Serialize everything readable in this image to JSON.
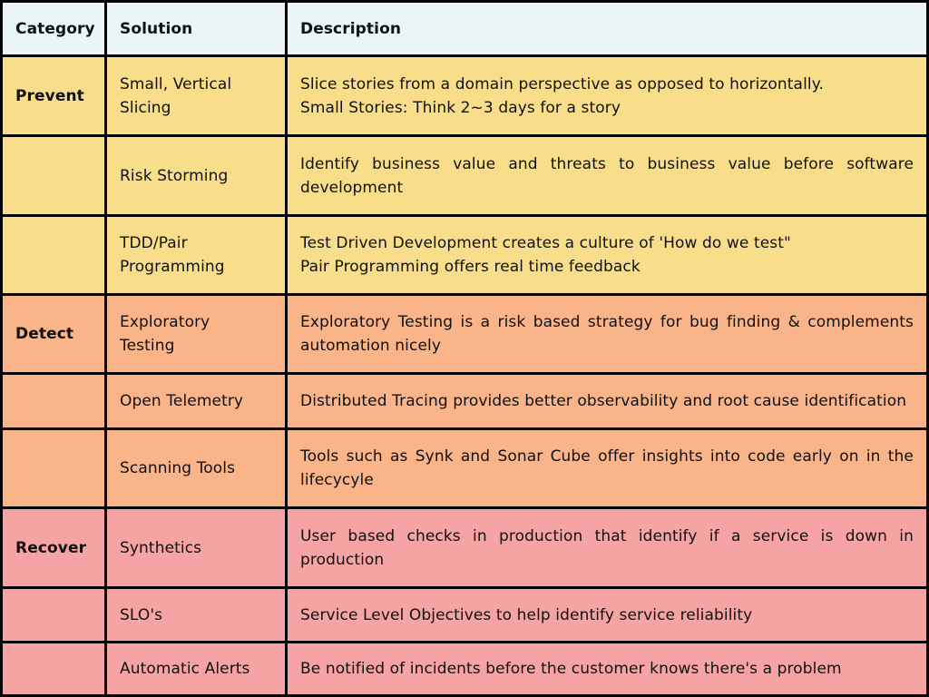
{
  "colors": {
    "header": "#ebf5f7",
    "prevent": "#f8de8b",
    "detect": "#f9b48a",
    "recover": "#f6a3a3",
    "border": "#000000"
  },
  "header": {
    "category": "Category",
    "solution": "Solution",
    "description": "Description"
  },
  "rows": [
    {
      "group": "prevent",
      "category": "Prevent",
      "solution": "Small, Vertical Slicing",
      "description_lines": [
        "Slice stories from a domain perspective as opposed to horizontally.",
        "Small Stories: Think 2~3 days for a story"
      ]
    },
    {
      "group": "prevent",
      "category": "",
      "solution": "Risk Storming",
      "description_lines": [
        "Identify business value and threats to business value before software development"
      ]
    },
    {
      "group": "prevent",
      "category": "",
      "solution": "TDD/Pair Programming",
      "description_lines": [
        "Test Driven Development creates a culture of 'How do we test\"",
        "Pair Programming  offers real time feedback"
      ]
    },
    {
      "group": "detect",
      "category": "Detect",
      "solution": "Exploratory Testing",
      "description_lines": [
        "Exploratory Testing is a risk based strategy for bug finding & complements automation nicely"
      ]
    },
    {
      "group": "detect",
      "category": "",
      "solution": "Open Telemetry",
      "description_lines": [
        "Distributed Tracing provides better observability and root cause identification"
      ]
    },
    {
      "group": "detect",
      "category": "",
      "solution": "Scanning Tools",
      "description_lines": [
        "Tools such as Synk and Sonar Cube offer insights into code early on in the lifecycyle"
      ]
    },
    {
      "group": "recover",
      "category": "Recover",
      "solution": "Synthetics",
      "description_lines": [
        "User based checks in production that identify if a service is down in production"
      ]
    },
    {
      "group": "recover",
      "category": "",
      "solution": "SLO's",
      "description_lines": [
        "Service Level Objectives to help identify service reliability"
      ]
    },
    {
      "group": "recover",
      "category": "",
      "solution": "Automatic Alerts",
      "description_lines": [
        "Be notified of incidents before the customer knows there's a problem"
      ]
    }
  ]
}
